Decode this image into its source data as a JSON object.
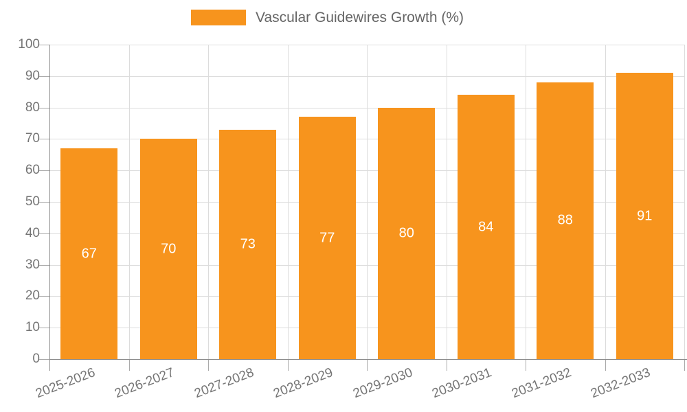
{
  "chart_data": {
    "type": "bar",
    "title": "Vascular Guidewires Growth (%)",
    "categories": [
      "2025-2026",
      "2026-2027",
      "2027-2028",
      "2028-2029",
      "2029-2030",
      "2030-2031",
      "2031-2032",
      "2032-2033"
    ],
    "values": [
      67,
      70,
      73,
      77,
      80,
      84,
      88,
      91
    ],
    "xlabel": "",
    "ylabel": "",
    "ylim": [
      0,
      100
    ],
    "ytick_step": 10,
    "grid": true,
    "legend_position": "top-center",
    "bar_labels_inside": true,
    "colors": {
      "bar": "#f7941d",
      "bar_value_text": "#ffffff",
      "axis_text": "#757575",
      "legend_text": "#666666",
      "gridline": "#dcdcdc",
      "axis_line": "#8c8c8c",
      "tick": "#aaaaaa",
      "background": "#ffffff"
    }
  },
  "legend": {
    "label": "Vascular Guidewires Growth (%)"
  }
}
